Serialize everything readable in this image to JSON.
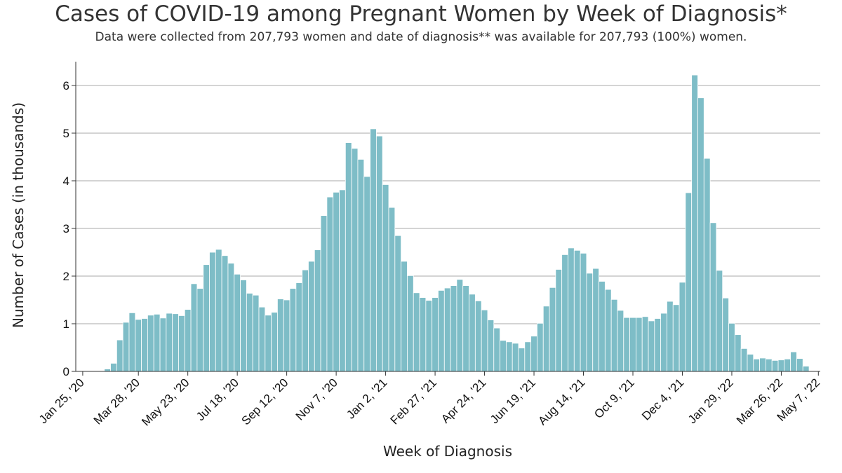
{
  "header": {
    "title": "Cases of COVID-19 among Pregnant Women by Week of Diagnosis*",
    "subtitle": "Data were collected from 207,793 women and date of diagnosis** was available for 207,793 (100%) women."
  },
  "chart_data": {
    "type": "bar",
    "title": "Cases of COVID-19 among Pregnant Women by Week of Diagnosis*",
    "subtitle": "Data were collected from 207,793 women and date of diagnosis** was available for 207,793 (100%) women.",
    "xlabel": "Week of Diagnosis",
    "ylabel": "Number of Cases (in thousands)",
    "ylim": [
      0,
      6.5
    ],
    "yticks": [
      0,
      1,
      2,
      3,
      4,
      5,
      6
    ],
    "grid": true,
    "legend": "none",
    "bar_color": "#7ebdc7",
    "bar_edge_color": "#ffffff",
    "first_week": "Jan 25, '20",
    "xtick_labels": [
      "Jan 25, '20",
      "Mar 28, '20",
      "May 23, '20",
      "Jul 18, '20",
      "Sep 12, '20",
      "Nov 7, '20",
      "Jan 2, '21",
      "Feb 27, '21",
      "Apr 24, '21",
      "Jun 19, '21",
      "Aug 14, '21",
      "Oct 9, '21",
      "Dec 4, '21",
      "Jan 29, '22",
      "Mar 26, '22",
      "May 7, '22"
    ],
    "xtick_weeks": [
      0,
      9,
      17,
      25,
      33,
      41,
      49,
      57,
      65,
      73,
      81,
      89,
      97,
      105,
      113,
      119
    ],
    "values": [
      0,
      0,
      0,
      0,
      0.05,
      0.17,
      0.66,
      1.03,
      1.23,
      1.09,
      1.11,
      1.18,
      1.2,
      1.12,
      1.22,
      1.21,
      1.17,
      1.3,
      1.84,
      1.74,
      2.24,
      2.5,
      2.56,
      2.43,
      2.27,
      2.04,
      1.92,
      1.64,
      1.6,
      1.35,
      1.18,
      1.24,
      1.52,
      1.5,
      1.74,
      1.86,
      2.13,
      2.31,
      2.55,
      3.27,
      3.66,
      3.76,
      3.81,
      4.8,
      4.68,
      4.45,
      4.09,
      5.09,
      4.94,
      3.92,
      3.44,
      2.85,
      2.31,
      2.01,
      1.65,
      1.55,
      1.49,
      1.55,
      1.7,
      1.75,
      1.8,
      1.93,
      1.8,
      1.62,
      1.48,
      1.29,
      1.08,
      0.91,
      0.65,
      0.62,
      0.59,
      0.49,
      0.62,
      0.74,
      1.01,
      1.37,
      1.76,
      2.14,
      2.45,
      2.59,
      2.54,
      2.48,
      2.06,
      2.16,
      1.89,
      1.72,
      1.51,
      1.28,
      1.13,
      1.13,
      1.13,
      1.15,
      1.06,
      1.11,
      1.22,
      1.47,
      1.4,
      1.87,
      3.75,
      6.22,
      5.74,
      4.47,
      3.12,
      2.12,
      1.54,
      1.01,
      0.77,
      0.48,
      0.36,
      0.26,
      0.28,
      0.26,
      0.23,
      0.24,
      0.26,
      0.41,
      0.27,
      0.11,
      0
    ]
  }
}
